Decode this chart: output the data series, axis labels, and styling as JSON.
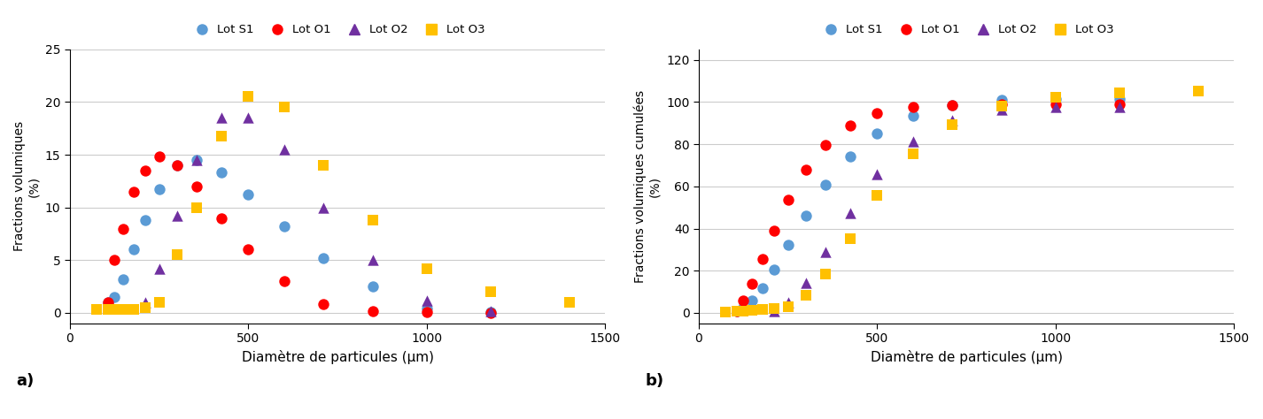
{
  "S1_x": [
    106,
    125,
    150,
    180,
    212,
    250,
    300,
    355,
    425,
    500,
    600,
    710,
    850,
    1000,
    1180
  ],
  "S1_y": [
    1.0,
    1.5,
    3.2,
    6.0,
    8.8,
    11.7,
    14.0,
    14.5,
    13.3,
    11.2,
    8.2,
    5.2,
    2.5,
    0.4,
    0.1
  ],
  "S1_cum": [
    1.0,
    2.5,
    5.7,
    11.7,
    20.5,
    32.2,
    46.2,
    60.7,
    74.0,
    85.2,
    93.4,
    98.6,
    101.1,
    101.5,
    101.6
  ],
  "O1_x": [
    106,
    125,
    150,
    180,
    212,
    250,
    300,
    355,
    425,
    500,
    600,
    710,
    850,
    1000,
    1180
  ],
  "O1_y": [
    1.0,
    5.0,
    8.0,
    11.5,
    13.5,
    14.8,
    14.0,
    12.0,
    9.0,
    6.0,
    3.0,
    0.8,
    0.2,
    0.1,
    0.0
  ],
  "O1_cum": [
    1.0,
    6.0,
    14.0,
    25.5,
    39.0,
    53.8,
    67.8,
    79.8,
    88.8,
    94.8,
    97.8,
    98.6,
    98.8,
    98.9,
    98.9
  ],
  "O2_x": [
    212,
    250,
    300,
    355,
    425,
    500,
    600,
    710,
    850,
    1000,
    1180
  ],
  "O2_y": [
    1.0,
    4.2,
    9.2,
    14.5,
    18.5,
    18.5,
    15.5,
    10.0,
    5.0,
    1.2,
    0.2
  ],
  "O2_cum": [
    1.0,
    5.2,
    14.4,
    28.9,
    47.4,
    65.9,
    81.4,
    91.4,
    96.4,
    97.6,
    97.8
  ],
  "O3_x": [
    75,
    106,
    125,
    150,
    180,
    212,
    250,
    300,
    355,
    425,
    500,
    600,
    710,
    850,
    1000,
    1180,
    1400
  ],
  "O3_y": [
    0.3,
    0.3,
    0.3,
    0.3,
    0.3,
    0.5,
    1.0,
    5.5,
    10.0,
    16.8,
    20.5,
    19.5,
    14.0,
    8.8,
    4.2,
    2.0,
    1.0
  ],
  "O3_cum": [
    0.3,
    0.6,
    0.9,
    1.2,
    1.5,
    2.0,
    3.0,
    8.5,
    18.5,
    35.3,
    55.8,
    75.3,
    89.3,
    98.1,
    102.3,
    104.3,
    105.3
  ],
  "colors": {
    "S1": "#5B9BD5",
    "O1": "#FF0000",
    "O2": "#7030A0",
    "O3": "#FFC000"
  },
  "ylabel_a": "Fractions volumiques\n(%)",
  "ylabel_b": "Fractions volumiques cumulées\n(%)",
  "xlabel": "Diamètre de particules (μm)",
  "ylim_a": [
    -1,
    25
  ],
  "ylim_b": [
    -5,
    125
  ],
  "xlim": [
    0,
    1500
  ],
  "yticks_a": [
    0,
    5,
    10,
    15,
    20,
    25
  ],
  "yticks_b": [
    0,
    20,
    40,
    60,
    80,
    100,
    120
  ],
  "xticks": [
    0,
    500,
    1000,
    1500
  ],
  "label_a": "a)",
  "label_b": "b)",
  "legend_entries": [
    "Lot S1",
    "Lot O1",
    "Lot O2",
    "Lot O3"
  ]
}
